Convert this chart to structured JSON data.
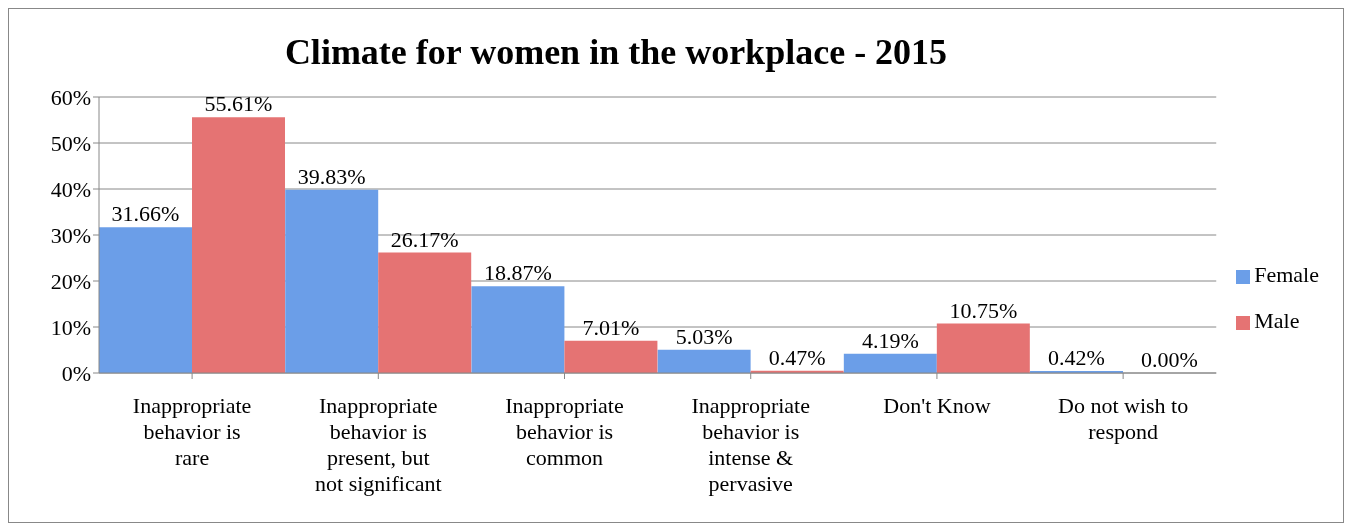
{
  "chart_data": {
    "type": "bar",
    "title": "Climate for women in the workplace - 2015",
    "categories": [
      "Inappropriate behavior is rare",
      "Inappropriate behavior is present, but not significant",
      "Inappropriate behavior is common",
      "Inappropriate behavior is intense & pervasive",
      "Don't Know",
      "Do not wish to respond"
    ],
    "series": [
      {
        "name": "Female",
        "color": "#6b9ee8",
        "values": [
          31.66,
          39.83,
          18.87,
          5.03,
          4.19,
          0.42
        ],
        "value_labels": [
          "31.66%",
          "39.83%",
          "18.87%",
          "5.03%",
          "4.19%",
          "0.42%"
        ]
      },
      {
        "name": "Male",
        "color": "#e57373",
        "values": [
          55.61,
          26.17,
          7.01,
          0.47,
          10.75,
          0
        ],
        "value_labels": [
          "55.61%",
          "26.17%",
          "7.01%",
          "0.47%",
          "10.75%",
          "0.00%"
        ]
      }
    ],
    "ylim": [
      0,
      60
    ],
    "yticks": [
      {
        "value": 0,
        "label": "0%"
      },
      {
        "value": 10,
        "label": "10%"
      },
      {
        "value": 20,
        "label": "20%"
      },
      {
        "value": 30,
        "label": "30%"
      },
      {
        "value": 40,
        "label": "40%"
      },
      {
        "value": 50,
        "label": "50%"
      },
      {
        "value": 60,
        "label": "60%"
      }
    ],
    "grid": "y",
    "legend": "right"
  }
}
